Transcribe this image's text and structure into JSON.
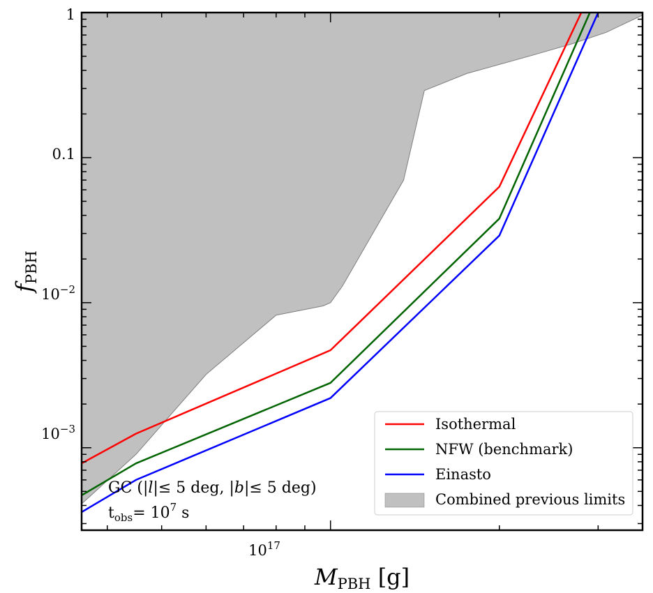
{
  "chart_data": {
    "type": "line",
    "title": "",
    "xlabel": {
      "main": "M",
      "sub": "PBH",
      "unit": " [g]"
    },
    "ylabel": {
      "main": "f",
      "sub": "PBH"
    },
    "xscale": "log",
    "yscale": "log",
    "xlim": [
      3.6e+16,
      3.6e+17
    ],
    "ylim": [
      0.00027,
      1
    ],
    "x_ticks": [
      {
        "value": 1e+17,
        "label": "10",
        "exp": "17"
      }
    ],
    "y_ticks": [
      {
        "value": 0.001,
        "label": "10",
        "exp": "−3"
      },
      {
        "value": 0.01,
        "label": "10",
        "exp": "−2"
      },
      {
        "value": 0.1,
        "label": "0.1",
        "exp": ""
      },
      {
        "value": 1,
        "label": "1",
        "exp": ""
      }
    ],
    "series": [
      {
        "name": "Isothermal",
        "color": "#ff0000",
        "x": [
          3.6e+16,
          4.5e+16,
          1e+17,
          2e+17,
          2.8e+17
        ],
        "y": [
          0.00078,
          0.00125,
          0.0047,
          0.063,
          1.0
        ]
      },
      {
        "name": "NFW (benchmark)",
        "color": "#006400",
        "x": [
          3.6e+16,
          4.5e+16,
          1e+17,
          2e+17,
          2.9e+17
        ],
        "y": [
          0.00047,
          0.00078,
          0.0028,
          0.038,
          1.0
        ]
      },
      {
        "name": "Einasto",
        "color": "#0000ff",
        "x": [
          3.6e+16,
          4.5e+16,
          1e+17,
          2e+17,
          3e+17
        ],
        "y": [
          0.00036,
          0.0006,
          0.0022,
          0.029,
          1.0
        ]
      }
    ],
    "shaded_region": {
      "name": "Combined previous limits",
      "color": "#c0c0c0",
      "edge_color": "#7f7f7f",
      "boundary": {
        "x": [
          3.6e+16,
          4.5e+16,
          6e+16,
          8e+16,
          9.7e+16,
          1e+17,
          1.05e+17,
          1.35e+17,
          1.47e+17,
          1.75e+17,
          2.3e+17,
          2.7e+17,
          3.1e+17,
          3.6e+17
        ],
        "y": [
          0.00041,
          0.0009,
          0.0032,
          0.0082,
          0.0095,
          0.01,
          0.013,
          0.07,
          0.29,
          0.38,
          0.51,
          0.61,
          0.73,
          0.96
        ]
      }
    },
    "legend": {
      "placement": "bottom-right"
    },
    "annotation": {
      "line1_prefix": "GC (|",
      "line1_l": "l",
      "line1_mid": "|≤ 5 deg, |",
      "line1_b": "b",
      "line1_suffix": "|≤ 5 deg)",
      "line2_t": "t",
      "line2_sub": "obs",
      "line2_eq": "= 10",
      "line2_exp": "7",
      "line2_unit": " s"
    }
  }
}
